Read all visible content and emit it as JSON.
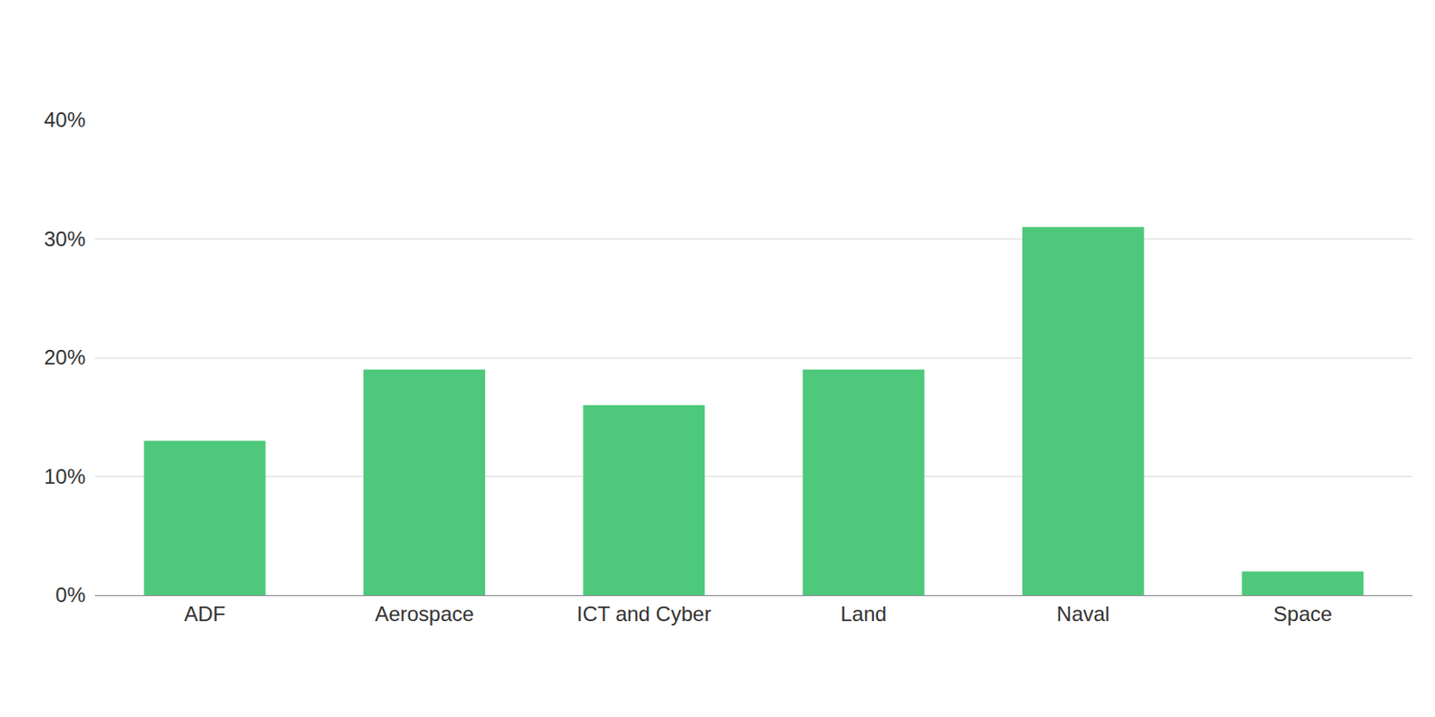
{
  "chart_data": {
    "type": "bar",
    "categories": [
      "ADF",
      "Aerospace",
      "ICT and Cyber",
      "Land",
      "Naval",
      "Space"
    ],
    "values": [
      13,
      19,
      16,
      19,
      31,
      2
    ],
    "color": "#4ec97b",
    "ylim": [
      0,
      40
    ],
    "yticks": [
      {
        "value": 0,
        "label": "0%"
      },
      {
        "value": 10,
        "label": "10%"
      },
      {
        "value": 20,
        "label": "20%"
      },
      {
        "value": 30,
        "label": "30%"
      },
      {
        "value": 40,
        "label": "40%"
      }
    ],
    "grid": true
  }
}
